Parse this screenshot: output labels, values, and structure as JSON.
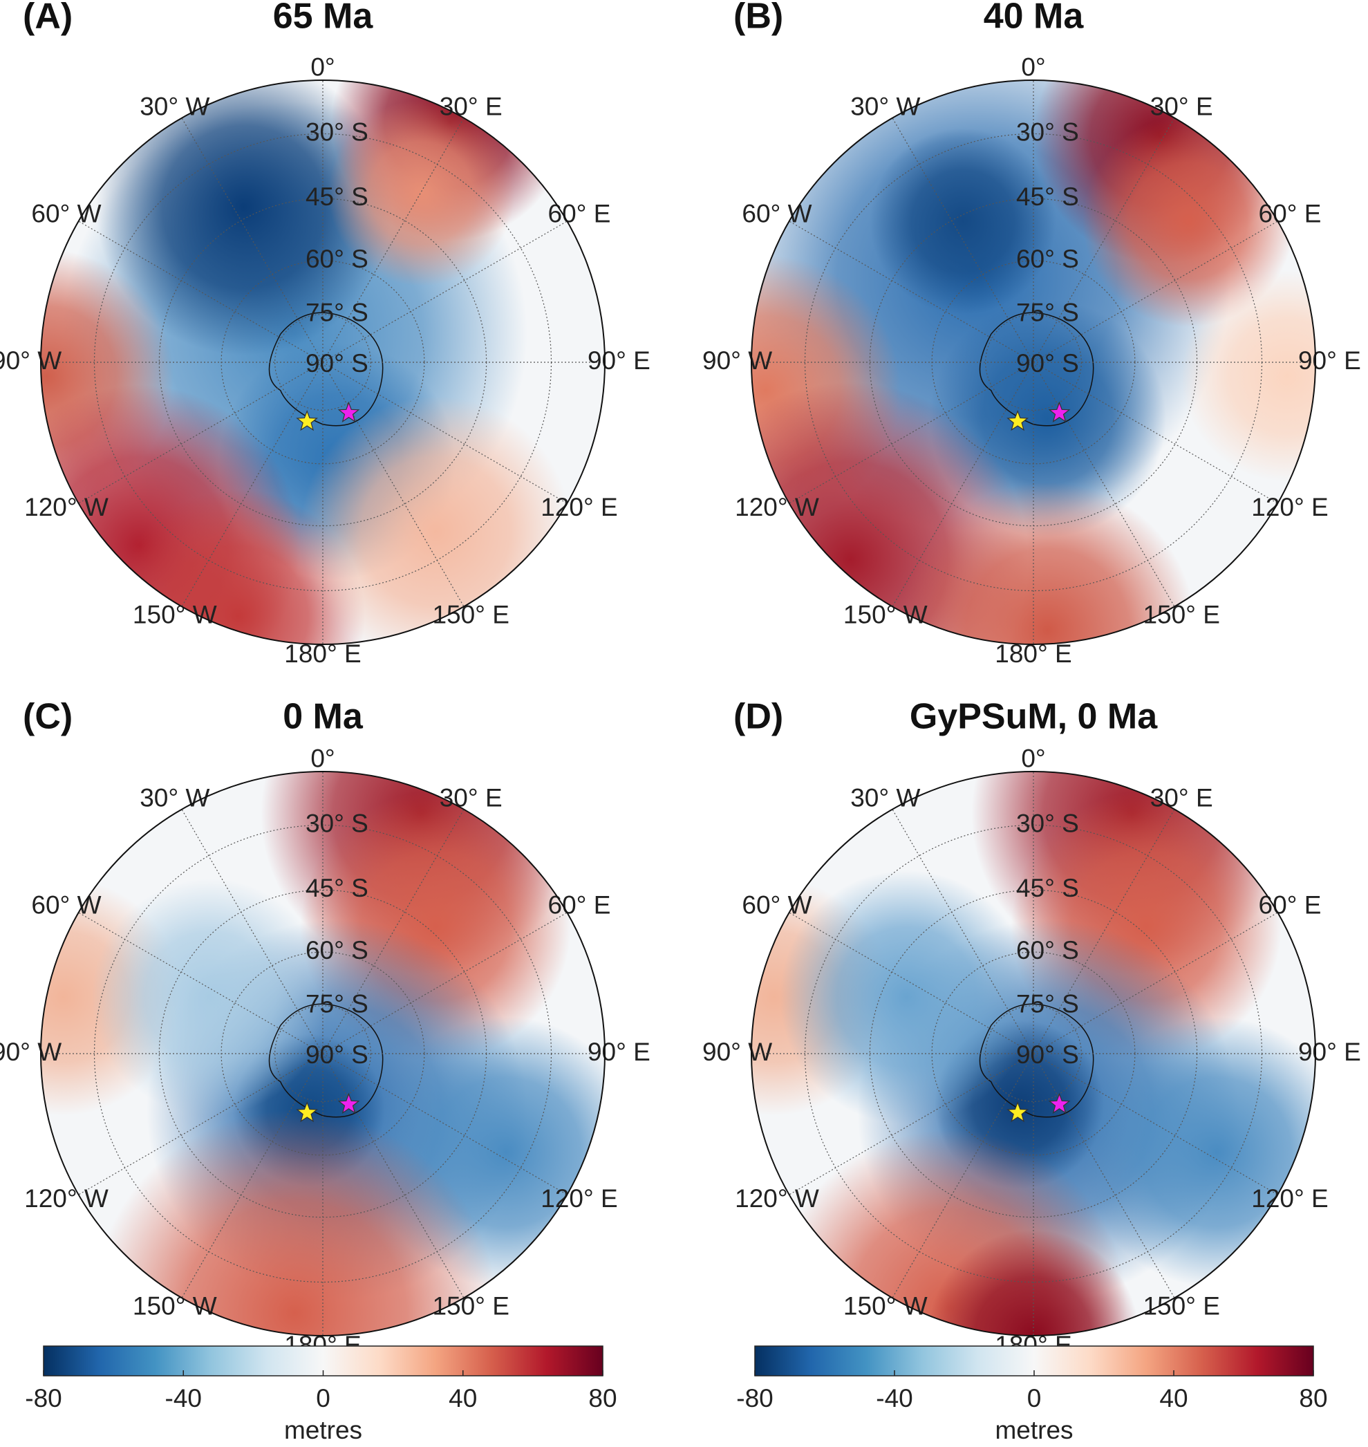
{
  "panels": [
    {
      "label": "(A)",
      "title": "65 Ma"
    },
    {
      "label": "(B)",
      "title": "40 Ma"
    },
    {
      "label": "(C)",
      "title": "0 Ma"
    },
    {
      "label": "(D)",
      "title": "GyPSuM, 0 Ma"
    }
  ],
  "longitude_labels": [
    "0°",
    "30° E",
    "60° E",
    "90° E",
    "120° E",
    "150° E",
    "180° E",
    "150° W",
    "120° W",
    "90° W",
    "60° W",
    "30° W"
  ],
  "latitude_labels": [
    "30° S",
    "45° S",
    "60° S",
    "75° S",
    "90° S"
  ],
  "colorbar": {
    "lim": [
      -80,
      80
    ],
    "ticks": [
      -80,
      -40,
      0,
      40,
      80
    ],
    "label": "metres"
  }
}
